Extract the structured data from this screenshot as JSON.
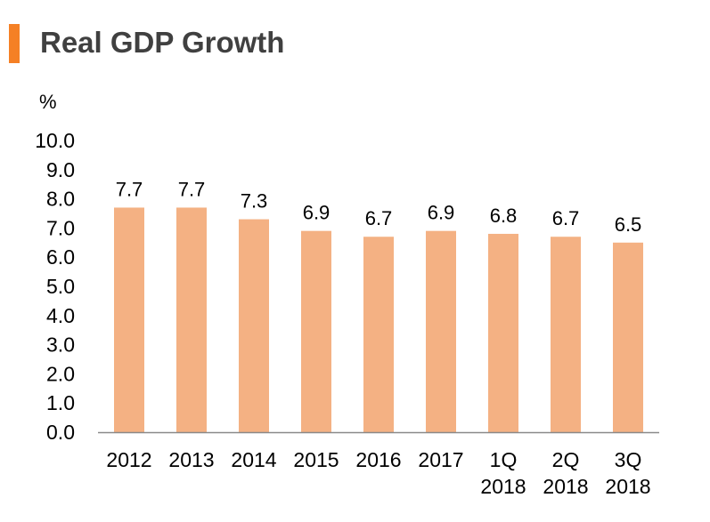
{
  "title": "Real GDP Growth",
  "colors": {
    "accent": "#f58025",
    "bar": "#f4b183",
    "axis": "#898989"
  },
  "chart_data": {
    "type": "bar",
    "title": "Real GDP Growth",
    "ylabel": "%",
    "xlabel": "",
    "ylim": [
      0,
      10
    ],
    "yticks": [
      "0.0",
      "1.0",
      "2.0",
      "3.0",
      "4.0",
      "5.0",
      "6.0",
      "7.0",
      "8.0",
      "9.0",
      "10.0"
    ],
    "categories": [
      [
        "2012"
      ],
      [
        "2013"
      ],
      [
        "2014"
      ],
      [
        "2015"
      ],
      [
        "2016"
      ],
      [
        "2017"
      ],
      [
        "1Q",
        "2018"
      ],
      [
        "2Q",
        "2018"
      ],
      [
        "3Q",
        "2018"
      ]
    ],
    "values": [
      7.7,
      7.7,
      7.3,
      6.9,
      6.7,
      6.9,
      6.8,
      6.7,
      6.5
    ],
    "data_labels": [
      "7.7",
      "7.7",
      "7.3",
      "6.9",
      "6.7",
      "6.9",
      "6.8",
      "6.7",
      "6.5"
    ],
    "grid": false,
    "legend": "none"
  }
}
